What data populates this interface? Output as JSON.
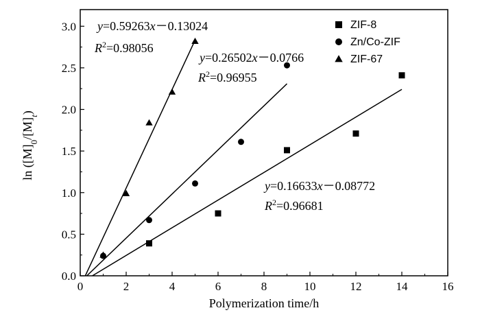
{
  "chart_data": {
    "type": "scatter",
    "xlabel": "Polymerization time/h",
    "ylabel_parts": [
      "ln ([M]",
      "0",
      "/[M]",
      "t",
      ")"
    ],
    "xlim": [
      0,
      16
    ],
    "ylim": [
      0,
      3.2
    ],
    "xticks": [
      0,
      2,
      4,
      6,
      8,
      10,
      12,
      14,
      16
    ],
    "yticks": [
      0.0,
      0.5,
      1.0,
      1.5,
      2.0,
      2.5,
      3.0
    ],
    "grid": false,
    "legend_position": "top-right",
    "series": [
      {
        "name": "ZIF-8",
        "marker": "square",
        "x": [
          3,
          6,
          9,
          12,
          14
        ],
        "y": [
          0.39,
          0.75,
          1.51,
          1.71,
          2.41
        ],
        "fit": {
          "slope": 0.16633,
          "intercept": -0.08772,
          "x_end": 14
        },
        "equation": {
          "prefix": "y",
          "body": "=0.16633",
          "var": "x",
          "suffix": "－0.08772"
        },
        "r2": {
          "label": "R",
          "sup": "2",
          "value": "=0.96681"
        }
      },
      {
        "name": "Zn/Co-ZIF",
        "marker": "circle",
        "x": [
          1,
          3,
          5,
          7,
          9
        ],
        "y": [
          0.24,
          0.67,
          1.11,
          1.61,
          2.53
        ],
        "fit": {
          "slope": 0.26502,
          "intercept": -0.0766,
          "x_end": 9
        },
        "equation": {
          "prefix": "y",
          "body": "=0.26502",
          "var": "x",
          "suffix": "－0.0766"
        },
        "r2": {
          "label": "R",
          "sup": "2",
          "value": "=0.96955"
        }
      },
      {
        "name": "ZIF-67",
        "marker": "triangle",
        "x": [
          1,
          2,
          3,
          4,
          5
        ],
        "y": [
          0.25,
          0.99,
          1.84,
          2.21,
          2.82
        ],
        "fit": {
          "slope": 0.59263,
          "intercept": -0.13024,
          "x_end": 5
        },
        "equation": {
          "prefix": "y",
          "body": "=0.59263",
          "var": "x",
          "suffix": "－0.13024"
        },
        "r2": {
          "label": "R",
          "sup": "2",
          "value": "=0.98056"
        }
      }
    ]
  }
}
